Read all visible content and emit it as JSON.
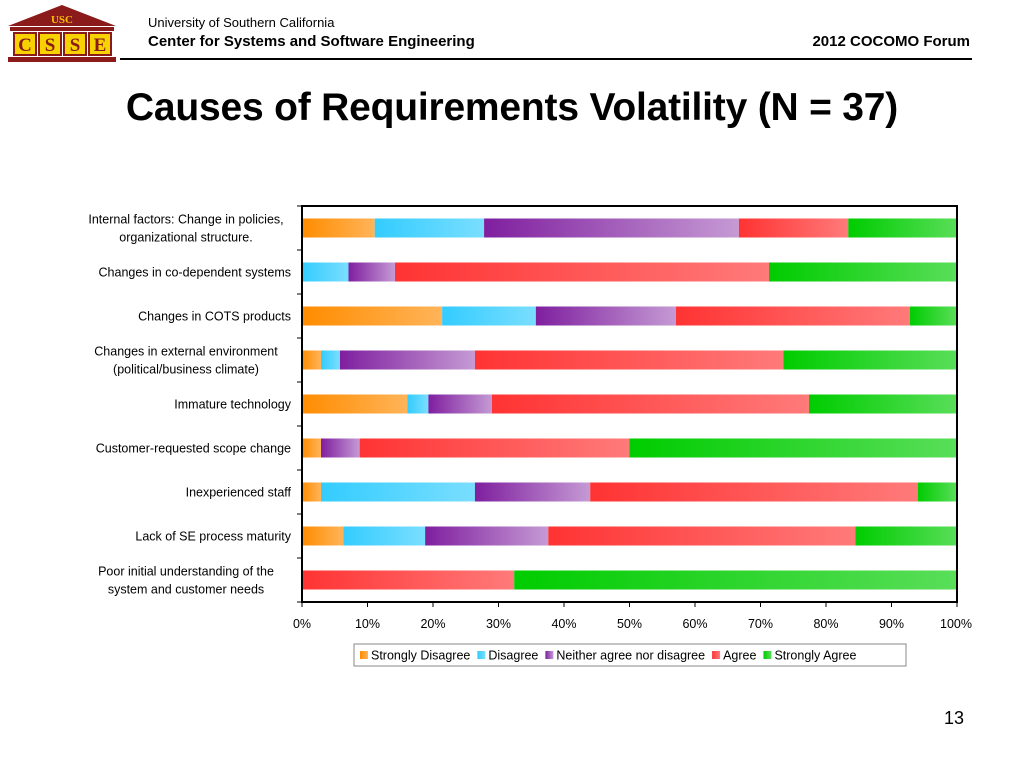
{
  "header": {
    "org": "University of Southern California",
    "center": "Center for Systems and Software Engineering",
    "forum": "2012 COCOMO Forum",
    "logo_text": "USC",
    "logo_letters": [
      "C",
      "S",
      "S",
      "E"
    ]
  },
  "slide": {
    "title": "Causes of Requirements Volatility (N = 37)",
    "number": "13"
  },
  "colors": {
    "strongly_disagree": "#ff8c00",
    "disagree": "#33ccff",
    "neither": "#7f1f9f",
    "agree": "#ff3333",
    "strongly_agree": "#00cc00"
  },
  "chart_data": {
    "type": "bar",
    "orientation": "horizontal",
    "stacked": true,
    "percent": true,
    "title": "",
    "xlabel": "",
    "ylabel": "",
    "xlim": [
      0,
      100
    ],
    "xticks": [
      "0%",
      "10%",
      "20%",
      "30%",
      "40%",
      "50%",
      "60%",
      "70%",
      "80%",
      "90%",
      "100%"
    ],
    "legend_position": "bottom",
    "categories": [
      [
        "Internal factors: Change in policies,",
        "organizational structure."
      ],
      [
        "Changes in co-dependent systems"
      ],
      [
        "Changes in COTS products"
      ],
      [
        "Changes in external environment",
        "(political/business climate)"
      ],
      [
        "Immature technology"
      ],
      [
        "Customer-requested scope change"
      ],
      [
        "Inexperienced staff"
      ],
      [
        "Lack of SE process maturity"
      ],
      [
        "Poor initial understanding of  the",
        "system and customer needs"
      ]
    ],
    "series": [
      {
        "name": "Strongly Disagree",
        "values": [
          11.1,
          0,
          21.4,
          2.9,
          16.1,
          2.9,
          2.9,
          6.3,
          0
        ]
      },
      {
        "name": "Disagree",
        "values": [
          16.7,
          7.1,
          14.3,
          2.9,
          3.2,
          0,
          23.5,
          12.5,
          0
        ]
      },
      {
        "name": "Neither agree nor disagree",
        "values": [
          38.9,
          7.1,
          21.4,
          20.6,
          9.7,
          5.9,
          17.6,
          18.8,
          0
        ]
      },
      {
        "name": "Agree",
        "values": [
          16.7,
          57.1,
          35.7,
          47.1,
          48.4,
          41.2,
          50.0,
          46.9,
          32.4
        ]
      },
      {
        "name": "Strongly Agree",
        "values": [
          16.7,
          28.6,
          7.1,
          26.5,
          22.6,
          50.0,
          5.9,
          15.6,
          67.6
        ]
      }
    ]
  }
}
